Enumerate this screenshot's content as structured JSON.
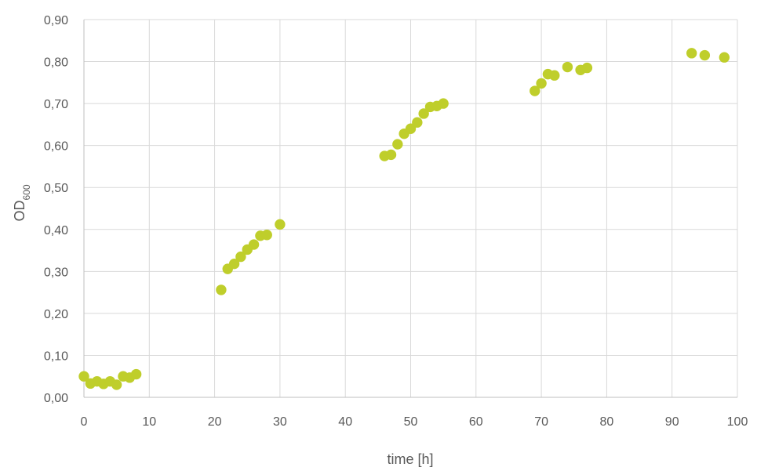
{
  "chart_data": {
    "type": "scatter",
    "title": "",
    "xlabel": "time [h]",
    "ylabel": {
      "main": "OD",
      "subscript": "600"
    },
    "xlim": [
      0,
      100
    ],
    "ylim": [
      0,
      0.9
    ],
    "x_ticks": [
      "0",
      "10",
      "20",
      "30",
      "40",
      "50",
      "60",
      "70",
      "80",
      "90",
      "100"
    ],
    "y_ticks": [
      "0,00",
      "0,10",
      "0,20",
      "0,30",
      "0,40",
      "0,50",
      "0,60",
      "0,70",
      "0,80",
      "0,90"
    ],
    "grid": true,
    "legend": "none",
    "marker_color": "#BFCE2B",
    "series": [
      {
        "points": [
          {
            "x": 0,
            "y": 0.05
          },
          {
            "x": 1,
            "y": 0.033
          },
          {
            "x": 2,
            "y": 0.038
          },
          {
            "x": 3,
            "y": 0.032
          },
          {
            "x": 4,
            "y": 0.038
          },
          {
            "x": 5,
            "y": 0.03
          },
          {
            "x": 6,
            "y": 0.05
          },
          {
            "x": 7,
            "y": 0.047
          },
          {
            "x": 8,
            "y": 0.055
          },
          {
            "x": 21,
            "y": 0.256
          },
          {
            "x": 22,
            "y": 0.306
          },
          {
            "x": 23,
            "y": 0.318
          },
          {
            "x": 24,
            "y": 0.335
          },
          {
            "x": 25,
            "y": 0.352
          },
          {
            "x": 26,
            "y": 0.364
          },
          {
            "x": 27,
            "y": 0.385
          },
          {
            "x": 28,
            "y": 0.387
          },
          {
            "x": 30,
            "y": 0.412
          },
          {
            "x": 46,
            "y": 0.575
          },
          {
            "x": 47,
            "y": 0.578
          },
          {
            "x": 48,
            "y": 0.603
          },
          {
            "x": 49,
            "y": 0.628
          },
          {
            "x": 50,
            "y": 0.64
          },
          {
            "x": 51,
            "y": 0.655
          },
          {
            "x": 52,
            "y": 0.676
          },
          {
            "x": 53,
            "y": 0.692
          },
          {
            "x": 54,
            "y": 0.694
          },
          {
            "x": 55,
            "y": 0.7
          },
          {
            "x": 69,
            "y": 0.73
          },
          {
            "x": 70,
            "y": 0.748
          },
          {
            "x": 71,
            "y": 0.77
          },
          {
            "x": 72,
            "y": 0.767
          },
          {
            "x": 74,
            "y": 0.787
          },
          {
            "x": 76,
            "y": 0.78
          },
          {
            "x": 77,
            "y": 0.785
          },
          {
            "x": 93,
            "y": 0.82
          },
          {
            "x": 95,
            "y": 0.815
          },
          {
            "x": 98,
            "y": 0.81
          }
        ]
      }
    ]
  }
}
